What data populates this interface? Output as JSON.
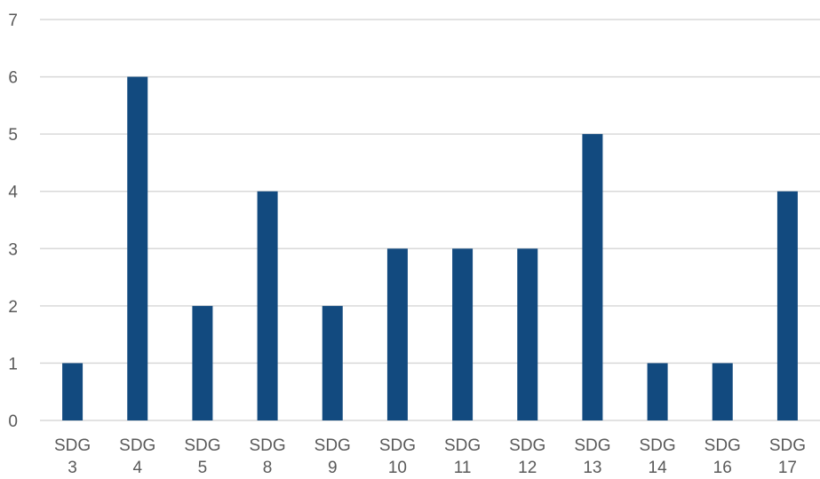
{
  "chart_data": {
    "type": "bar",
    "categories": [
      [
        "SDG",
        "3"
      ],
      [
        "SDG",
        "4"
      ],
      [
        "SDG",
        "5"
      ],
      [
        "SDG",
        "8"
      ],
      [
        "SDG",
        "9"
      ],
      [
        "SDG",
        "10"
      ],
      [
        "SDG",
        "11"
      ],
      [
        "SDG",
        "12"
      ],
      [
        "SDG",
        "13"
      ],
      [
        "SDG",
        "14"
      ],
      [
        "SDG",
        "16"
      ],
      [
        "SDG",
        "17"
      ]
    ],
    "values": [
      1,
      6,
      2,
      4,
      2,
      3,
      3,
      3,
      5,
      1,
      1,
      4
    ],
    "ylim": [
      0,
      7
    ],
    "yticks": [
      0,
      1,
      2,
      3,
      4,
      5,
      6,
      7
    ],
    "grid": true,
    "legend": "none",
    "bar_color": "#124a7f",
    "grid_color": "#d9d9d9",
    "text_color": "#595959"
  }
}
